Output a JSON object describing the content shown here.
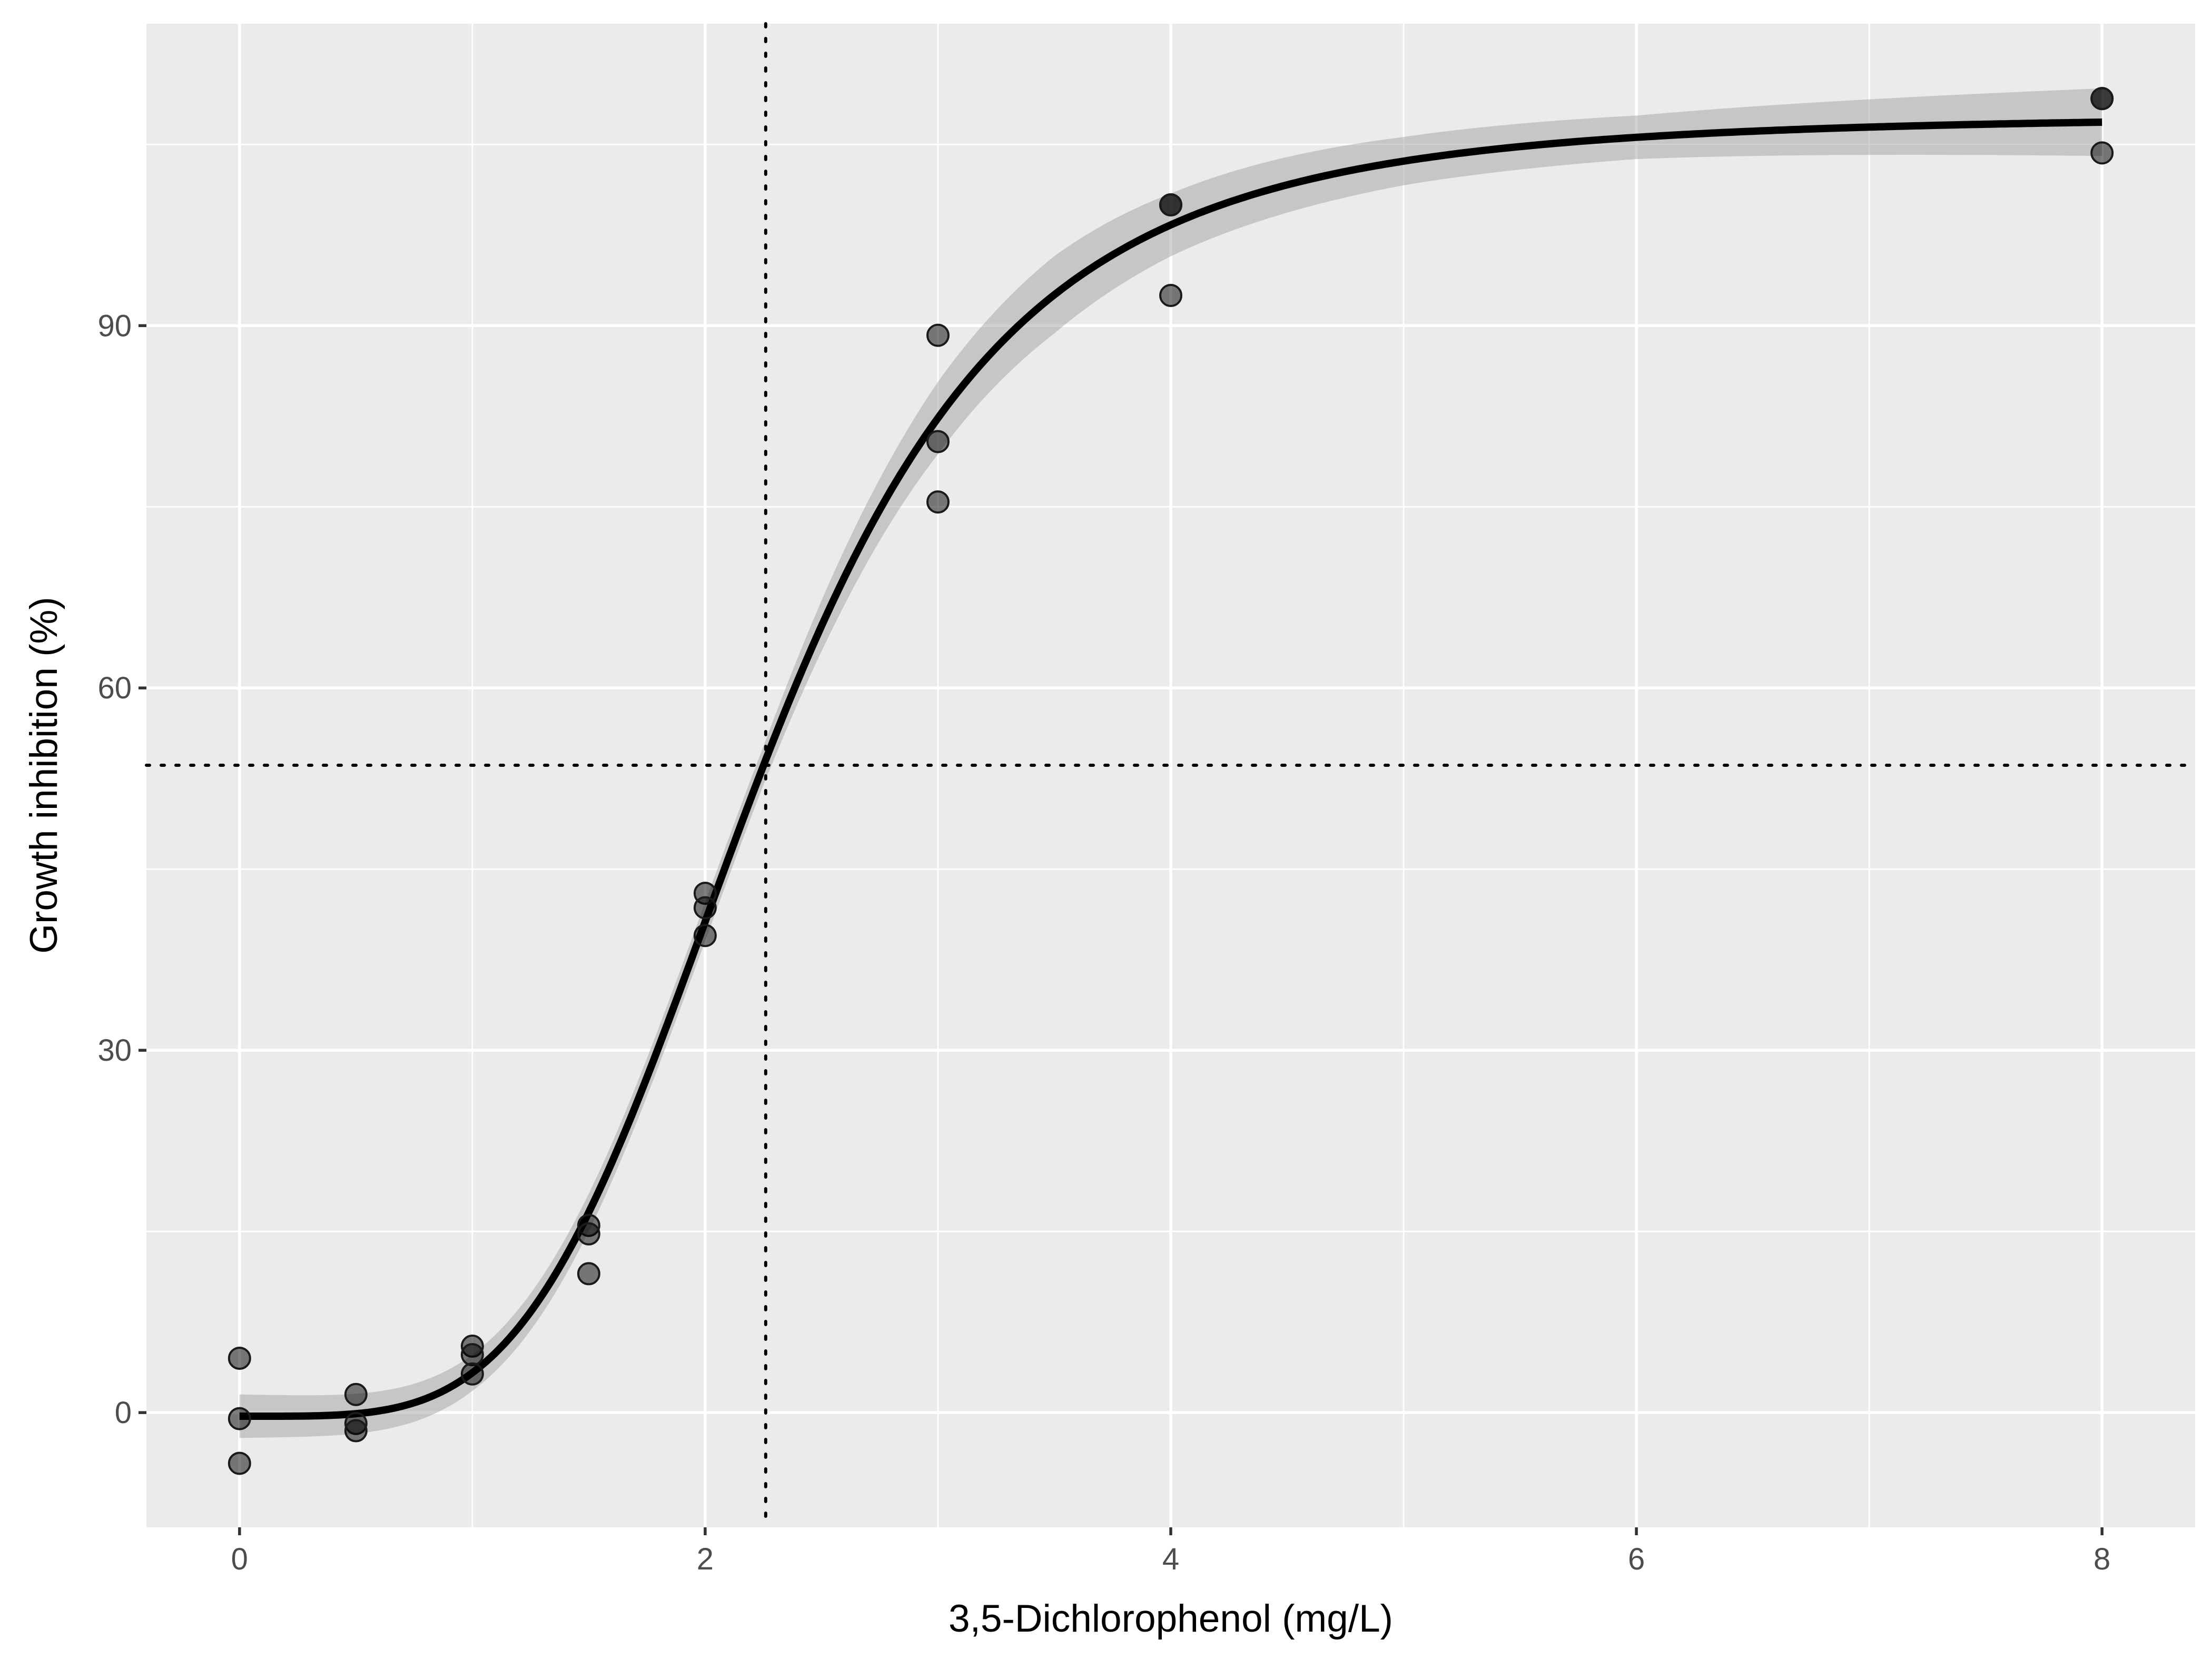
{
  "chart_data": {
    "type": "scatter",
    "title": "",
    "xlabel": "3,5-Dichlorophenol (mg/L)",
    "ylabel": "Growth inhibition (%)",
    "xlim": [
      -0.4,
      8.4
    ],
    "ylim": [
      -9.5,
      115
    ],
    "x_ticks": [
      0,
      2,
      4,
      6,
      8
    ],
    "y_ticks": [
      0,
      30,
      60,
      90
    ],
    "x_tick_labels": [
      "0",
      "2",
      "4",
      "6",
      "8"
    ],
    "y_tick_labels": [
      "0",
      "30",
      "60",
      "90"
    ],
    "grid": true,
    "legend": "none",
    "points": [
      {
        "x": 0,
        "y": 4.5
      },
      {
        "x": 0,
        "y": -0.5
      },
      {
        "x": 0,
        "y": -4.2
      },
      {
        "x": 0.5,
        "y": 1.5
      },
      {
        "x": 0.5,
        "y": -0.9
      },
      {
        "x": 0.5,
        "y": -1.5
      },
      {
        "x": 1,
        "y": 5.5
      },
      {
        "x": 1,
        "y": 4.8
      },
      {
        "x": 1,
        "y": 3.2
      },
      {
        "x": 1.5,
        "y": 15.5
      },
      {
        "x": 1.5,
        "y": 14.8
      },
      {
        "x": 1.5,
        "y": 11.5
      },
      {
        "x": 2,
        "y": 43.0
      },
      {
        "x": 2,
        "y": 41.8
      },
      {
        "x": 2,
        "y": 39.5
      },
      {
        "x": 3,
        "y": 89.2
      },
      {
        "x": 3,
        "y": 80.4
      },
      {
        "x": 3,
        "y": 75.4
      },
      {
        "x": 4,
        "y": 100.0
      },
      {
        "x": 4,
        "y": 100.0
      },
      {
        "x": 4,
        "y": 92.5
      },
      {
        "x": 8,
        "y": 108.8
      },
      {
        "x": 8,
        "y": 108.8
      },
      {
        "x": 8,
        "y": 104.3
      }
    ],
    "fit": {
      "model": "log-logistic",
      "upper": 107.4,
      "lower": -0.3,
      "ec50": 2.25,
      "slope": 4.15,
      "ci_halfwidth": [
        {
          "x": 0,
          "hw": 1.8
        },
        {
          "x": 1,
          "hw": 1.5
        },
        {
          "x": 2,
          "hw": 1.6
        },
        {
          "x": 2.25,
          "hw": 1.6
        },
        {
          "x": 2.6,
          "hw": 2.3
        },
        {
          "x": 3,
          "hw": 3.0
        },
        {
          "x": 3.5,
          "hw": 3.2
        },
        {
          "x": 4,
          "hw": 2.6
        },
        {
          "x": 5,
          "hw": 2.0
        },
        {
          "x": 6,
          "hw": 1.8
        },
        {
          "x": 8,
          "hw": 2.8
        }
      ]
    },
    "reference_lines": {
      "x": 2.26,
      "y": 53.6
    }
  }
}
